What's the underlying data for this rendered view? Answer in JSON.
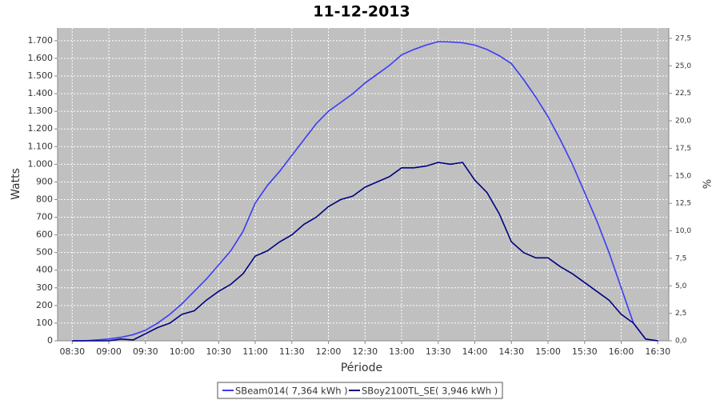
{
  "chart_data": {
    "type": "line",
    "title": "11-12-2013",
    "xlabel": "Période",
    "ylabel": "Watts",
    "y2label": "%",
    "x": [
      "08:30",
      "08:40",
      "08:50",
      "09:00",
      "09:10",
      "09:20",
      "09:30",
      "09:40",
      "09:50",
      "10:00",
      "10:10",
      "10:20",
      "10:30",
      "10:40",
      "10:50",
      "11:00",
      "11:10",
      "11:20",
      "11:30",
      "11:40",
      "11:50",
      "12:00",
      "12:10",
      "12:20",
      "12:30",
      "12:40",
      "12:50",
      "13:00",
      "13:10",
      "13:20",
      "13:30",
      "13:40",
      "13:50",
      "14:00",
      "14:10",
      "14:20",
      "14:30",
      "14:40",
      "14:50",
      "15:00",
      "15:10",
      "15:20",
      "15:30",
      "15:40",
      "15:50",
      "16:00",
      "16:10",
      "16:20",
      "16:30"
    ],
    "series": [
      {
        "name": "SBeam014( 7,364 kWh )",
        "color": "#3c3cf5",
        "values": [
          0,
          0,
          5,
          10,
          20,
          35,
          60,
          100,
          150,
          210,
          280,
          350,
          430,
          510,
          620,
          780,
          880,
          960,
          1050,
          1140,
          1230,
          1300,
          1350,
          1400,
          1460,
          1510,
          1560,
          1620,
          1650,
          1675,
          1695,
          1693,
          1688,
          1675,
          1650,
          1615,
          1570,
          1480,
          1380,
          1270,
          1140,
          1000,
          840,
          680,
          500,
          300,
          100,
          10,
          0
        ]
      },
      {
        "name": "SBoy2100TL_SE( 3,946 kWh )",
        "color": "#000080",
        "values": [
          0,
          0,
          0,
          0,
          10,
          5,
          40,
          75,
          100,
          150,
          170,
          230,
          280,
          320,
          380,
          480,
          510,
          560,
          600,
          660,
          700,
          760,
          800,
          820,
          870,
          900,
          930,
          980,
          980,
          990,
          1010,
          1000,
          1010,
          910,
          840,
          720,
          560,
          500,
          470,
          470,
          420,
          380,
          330,
          280,
          230,
          150,
          100,
          10,
          0
        ]
      }
    ],
    "xlim": [
      "08:18",
      "16:39"
    ],
    "xticks": [
      "08:30",
      "09:00",
      "09:30",
      "10:00",
      "10:30",
      "11:00",
      "11:30",
      "12:00",
      "12:30",
      "13:00",
      "13:30",
      "14:00",
      "14:30",
      "15:00",
      "15:30",
      "16:00",
      "16:30"
    ],
    "ylim": [
      0,
      1772
    ],
    "yticks": [
      0,
      100,
      200,
      300,
      400,
      500,
      600,
      700,
      800,
      900,
      {
        "value": 1000,
        "label": "1.000"
      },
      {
        "value": 1100,
        "label": "1.100"
      },
      {
        "value": 1200,
        "label": "1.200"
      },
      {
        "value": 1300,
        "label": "1.300"
      },
      {
        "value": 1400,
        "label": "1.400"
      },
      {
        "value": 1500,
        "label": "1.500"
      },
      {
        "value": 1600,
        "label": "1.600"
      },
      {
        "value": 1700,
        "label": "1.700"
      }
    ],
    "y2lim": [
      0,
      28.44
    ],
    "y2ticks": [
      {
        "value": 0,
        "label": "0,0"
      },
      {
        "value": 2.5,
        "label": "2,5"
      },
      {
        "value": 5,
        "label": "5,0"
      },
      {
        "value": 7.5,
        "label": "7,5"
      },
      {
        "value": 10,
        "label": "10,0"
      },
      {
        "value": 12.5,
        "label": "12,5"
      },
      {
        "value": 15,
        "label": "15,0"
      },
      {
        "value": 17.5,
        "label": "17,5"
      },
      {
        "value": 20,
        "label": "20,0"
      },
      {
        "value": 22.5,
        "label": "22,5"
      },
      {
        "value": 25,
        "label": "25,0"
      },
      {
        "value": 27.5,
        "label": "27,5"
      }
    ],
    "grid": true,
    "legend": "bottom"
  }
}
